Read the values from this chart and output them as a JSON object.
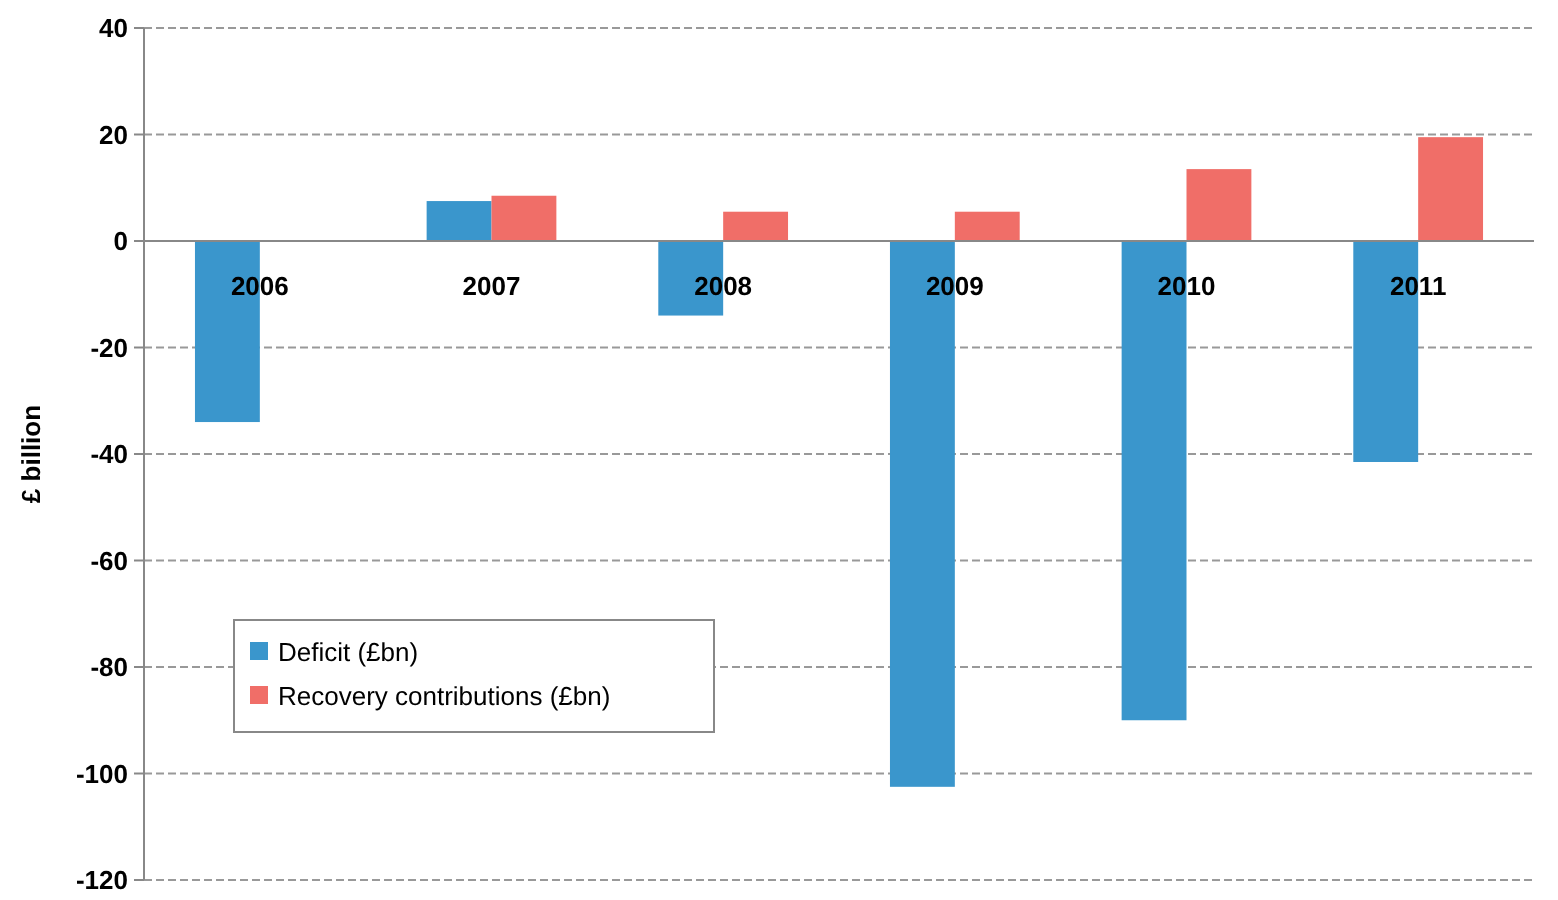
{
  "chart_data": {
    "type": "bar",
    "ylabel": "£ billion",
    "categories": [
      "2006",
      "2007",
      "2008",
      "2009",
      "2010",
      "2011"
    ],
    "series": [
      {
        "name": "Deficit (£bn)",
        "color": "#3a96cc",
        "values": [
          -34,
          7.5,
          -14,
          -102.5,
          -90,
          -41.5
        ]
      },
      {
        "name": "Recovery contributions (£bn)",
        "color": "#f06e68",
        "values": [
          null,
          8.5,
          5.5,
          5.5,
          13.5,
          19.5
        ]
      }
    ],
    "ylim": [
      -120,
      40
    ],
    "yticks": [
      -120,
      -100,
      -80,
      -60,
      -40,
      -20,
      0,
      20,
      40
    ],
    "grid": "y",
    "legend": "bottom left"
  }
}
